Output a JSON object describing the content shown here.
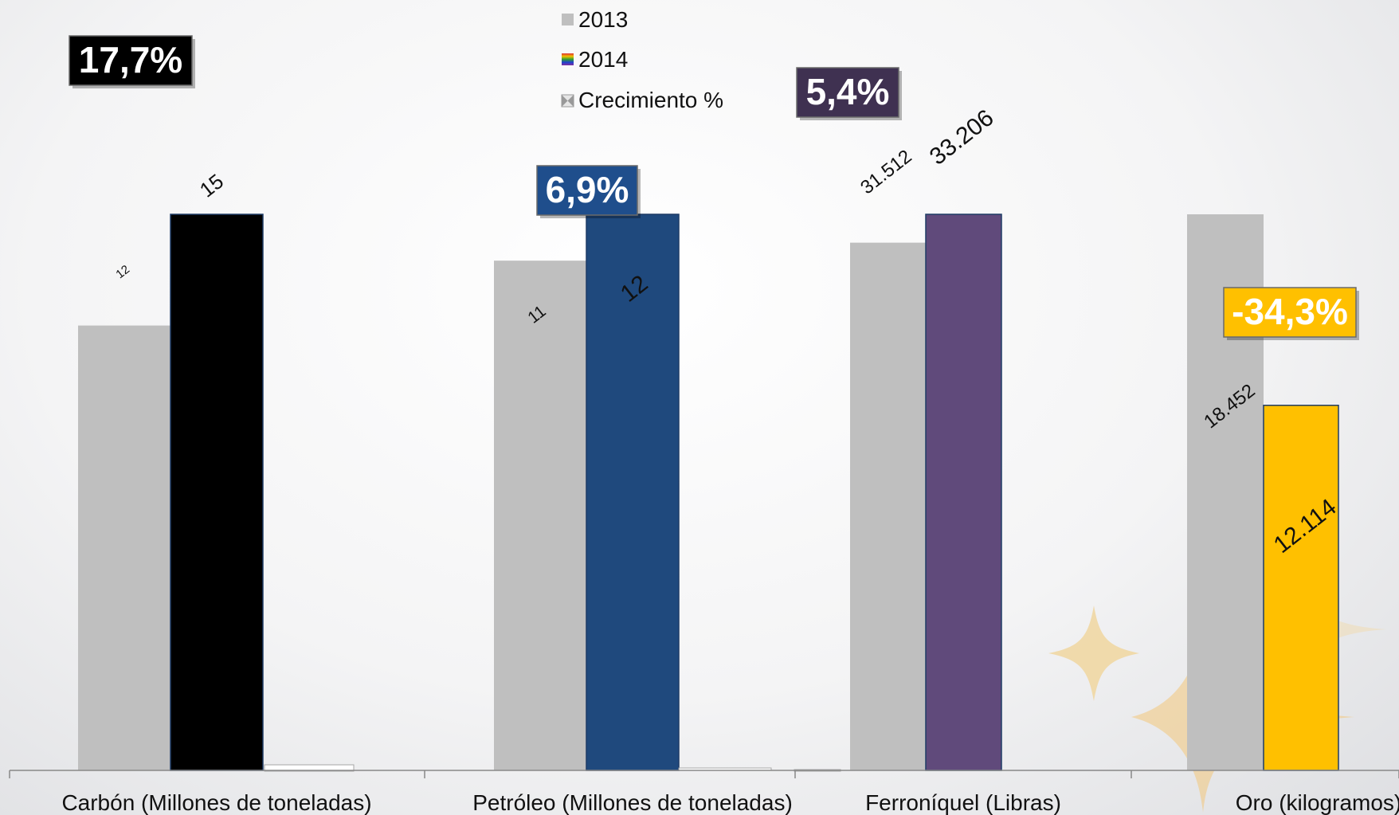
{
  "chart_data": {
    "type": "bar",
    "categories": [
      "Carbón (Millones de toneladas)",
      "Petróleo (Millones de toneladas)",
      "Ferroníquel (Libras)",
      "Oro  (kilogramos)"
    ],
    "series": [
      {
        "name": "2013",
        "values": [
          12,
          11,
          31512,
          18452
        ],
        "labels": [
          "12",
          "11",
          "31.512",
          "18.452"
        ],
        "color": "#bfbfbf"
      },
      {
        "name": "2014",
        "values": [
          15,
          12,
          33206,
          12114
        ],
        "labels": [
          "15",
          "12",
          "33.206",
          "12.114"
        ],
        "colors": [
          "#000000",
          "#1f497d",
          "#604a7b",
          "#ffc000"
        ]
      },
      {
        "name": "Crecimiento %",
        "values": [
          17.7,
          6.9,
          5.4,
          -34.3
        ],
        "labels": [
          "17,7%",
          "6,9%",
          "5,4%",
          "-34,3%"
        ],
        "badge_colors": [
          "#000000",
          "#1f4e8c",
          "#3f3151",
          "#ffc000"
        ]
      }
    ],
    "category_max": [
      15,
      12,
      33206,
      18452
    ],
    "legend": {
      "position": "top-center",
      "entries": [
        "2013",
        "2014",
        "Crecimiento %"
      ]
    },
    "grid": false
  }
}
